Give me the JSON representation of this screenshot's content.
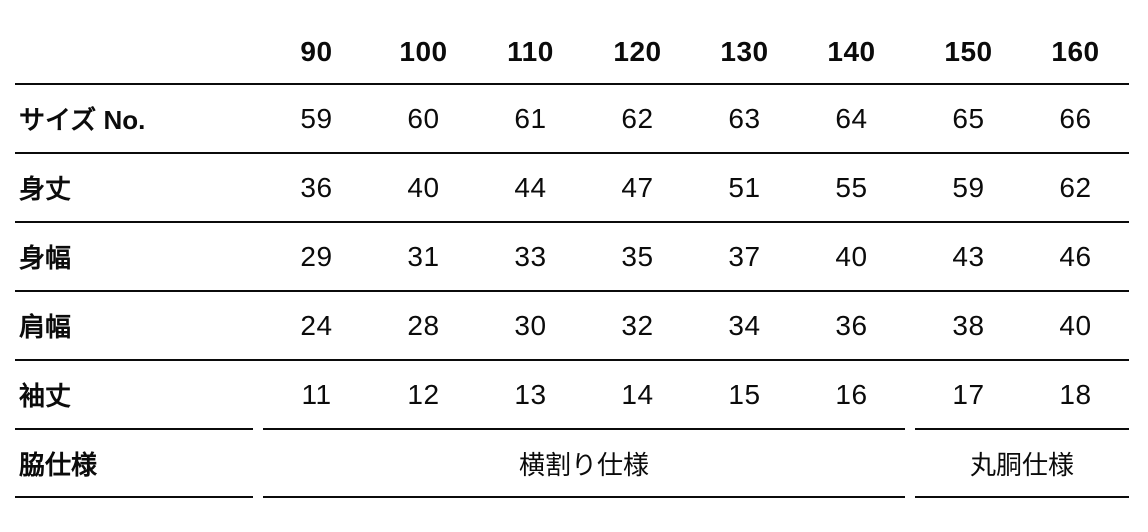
{
  "table": {
    "size_headers": [
      "90",
      "100",
      "110",
      "120",
      "130",
      "140",
      "150",
      "160"
    ],
    "rows": [
      {
        "label": "サイズ No.",
        "values": [
          "59",
          "60",
          "61",
          "62",
          "63",
          "64",
          "65",
          "66"
        ]
      },
      {
        "label": "身丈",
        "values": [
          "36",
          "40",
          "44",
          "47",
          "51",
          "55",
          "59",
          "62"
        ]
      },
      {
        "label": "身幅",
        "values": [
          "29",
          "31",
          "33",
          "35",
          "37",
          "40",
          "43",
          "46"
        ]
      },
      {
        "label": "肩幅",
        "values": [
          "24",
          "28",
          "30",
          "32",
          "34",
          "36",
          "38",
          "40"
        ]
      },
      {
        "label": "袖丈",
        "values": [
          "11",
          "12",
          "13",
          "14",
          "15",
          "16",
          "17",
          "18"
        ]
      }
    ],
    "spec_row": {
      "label": "脇仕様",
      "groups": [
        {
          "text": "横割り仕様",
          "span": 6
        },
        {
          "text": "丸胴仕様",
          "span": 2
        }
      ]
    },
    "colors": {
      "text": "#0b0b0b",
      "rule": "#0b0b0b",
      "background": "#ffffff"
    }
  }
}
